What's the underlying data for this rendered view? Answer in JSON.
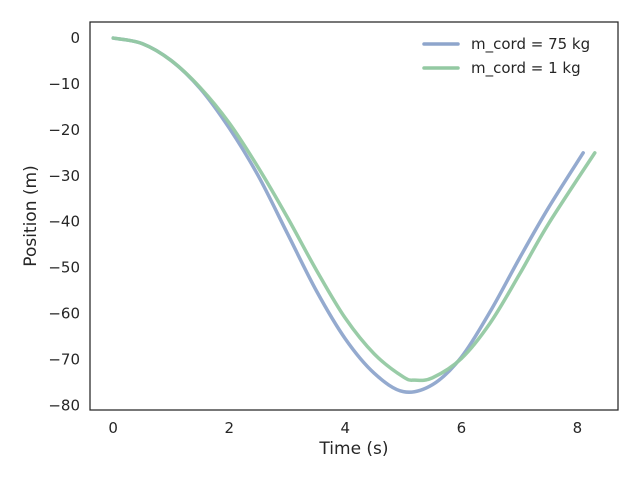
{
  "chart_data": {
    "type": "line",
    "xlabel": "Time (s)",
    "ylabel": "Position (m)",
    "xlim": [
      -0.4,
      8.7
    ],
    "ylim": [
      -81,
      3.5
    ],
    "xticks": [
      0,
      2,
      4,
      6,
      8
    ],
    "yticks": [
      0,
      -10,
      -20,
      -30,
      -40,
      -50,
      -60,
      -70,
      -80
    ],
    "xtick_labels": [
      "0",
      "2",
      "4",
      "6",
      "8"
    ],
    "ytick_labels": [
      "0",
      "−10",
      "−20",
      "−30",
      "−40",
      "−50",
      "−60",
      "−70",
      "−80"
    ],
    "grid": false,
    "legend_position": "top-right",
    "series": [
      {
        "name": "m_cord = 75 kg",
        "color": "#8ea5cc",
        "x": [
          0,
          0.5,
          1.0,
          1.5,
          2.0,
          2.5,
          3.0,
          3.5,
          4.0,
          4.5,
          5.0,
          5.5,
          6.0,
          6.5,
          7.0,
          7.5,
          8.1
        ],
        "y": [
          0,
          -1.2,
          -4.9,
          -11.0,
          -19.6,
          -30.0,
          -42.5,
          -55.0,
          -65.5,
          -73.0,
          -77.0,
          -75.5,
          -69.5,
          -59.5,
          -48.0,
          -37.0,
          -25.0
        ]
      },
      {
        "name": "m_cord = 1 kg",
        "color": "#93c9a2",
        "x": [
          0,
          0.5,
          1.0,
          1.5,
          2.0,
          2.5,
          3.0,
          3.5,
          4.0,
          4.5,
          5.0,
          5.2,
          5.5,
          6.0,
          6.5,
          7.0,
          7.5,
          8.3
        ],
        "y": [
          0,
          -1.2,
          -4.9,
          -10.8,
          -18.5,
          -28.2,
          -39.0,
          -50.5,
          -61.0,
          -68.8,
          -73.8,
          -74.5,
          -74.0,
          -69.8,
          -62.0,
          -51.5,
          -40.5,
          -25.0
        ]
      }
    ]
  }
}
